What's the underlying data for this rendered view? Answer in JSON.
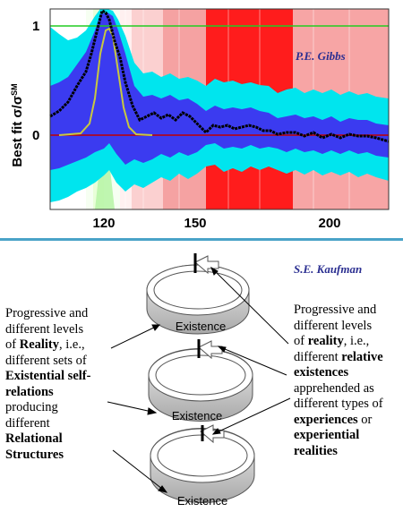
{
  "plot": {
    "ylabel": "Best fit σ/σ",
    "ylabel_sup": "SM",
    "author": "P.E. Gibbs",
    "y_ticks": [
      "1",
      "0"
    ],
    "x_ticks": [
      "120",
      "150",
      "200"
    ],
    "colors": {
      "outer_band": "#00e5ee",
      "inner_band": "#3b3bf0",
      "central_line": "#000000",
      "signal_curve": "#c8c840",
      "unity_line": "#22cc22",
      "zero_line": "#c00000"
    }
  },
  "diagram": {
    "author": "S.E. Kaufman",
    "ring_labels": [
      "Existence",
      "Existence",
      "Existence"
    ],
    "left_text": [
      {
        "t": "Progressive and",
        "b": false
      },
      {
        "t": "different levels",
        "b": false
      },
      {
        "t": "of ",
        "b": false,
        "rest": [
          {
            "t": "Reality",
            "b": true
          },
          {
            "t": ", i.e.,",
            "b": false
          }
        ]
      },
      {
        "t": "different sets of",
        "b": false
      },
      {
        "t": "Existential self-",
        "b": true
      },
      {
        "t": "relations",
        "b": true
      },
      {
        "t": "producing",
        "b": false
      },
      {
        "t": "different",
        "b": false
      },
      {
        "t": "Relational",
        "b": true
      },
      {
        "t": "Structures",
        "b": true
      }
    ],
    "right_text": [
      {
        "t": "Progressive and",
        "b": false
      },
      {
        "t": "different levels",
        "b": false
      },
      {
        "t": "of ",
        "b": false,
        "rest": [
          {
            "t": "reality",
            "b": true
          },
          {
            "t": ", i.e.,",
            "b": false
          }
        ]
      },
      {
        "t": "different ",
        "b": false,
        "rest": [
          {
            "t": "relative",
            "b": true
          }
        ]
      },
      {
        "t": "existences",
        "b": true
      },
      {
        "t": "apprehended as",
        "b": false
      },
      {
        "t": "different types of",
        "b": false
      },
      {
        "t": "experiences",
        "b": true,
        "rest": [
          {
            "t": " or",
            "b": false
          }
        ]
      },
      {
        "t": "experiential",
        "b": true
      },
      {
        "t": "realities",
        "b": true
      }
    ]
  }
}
